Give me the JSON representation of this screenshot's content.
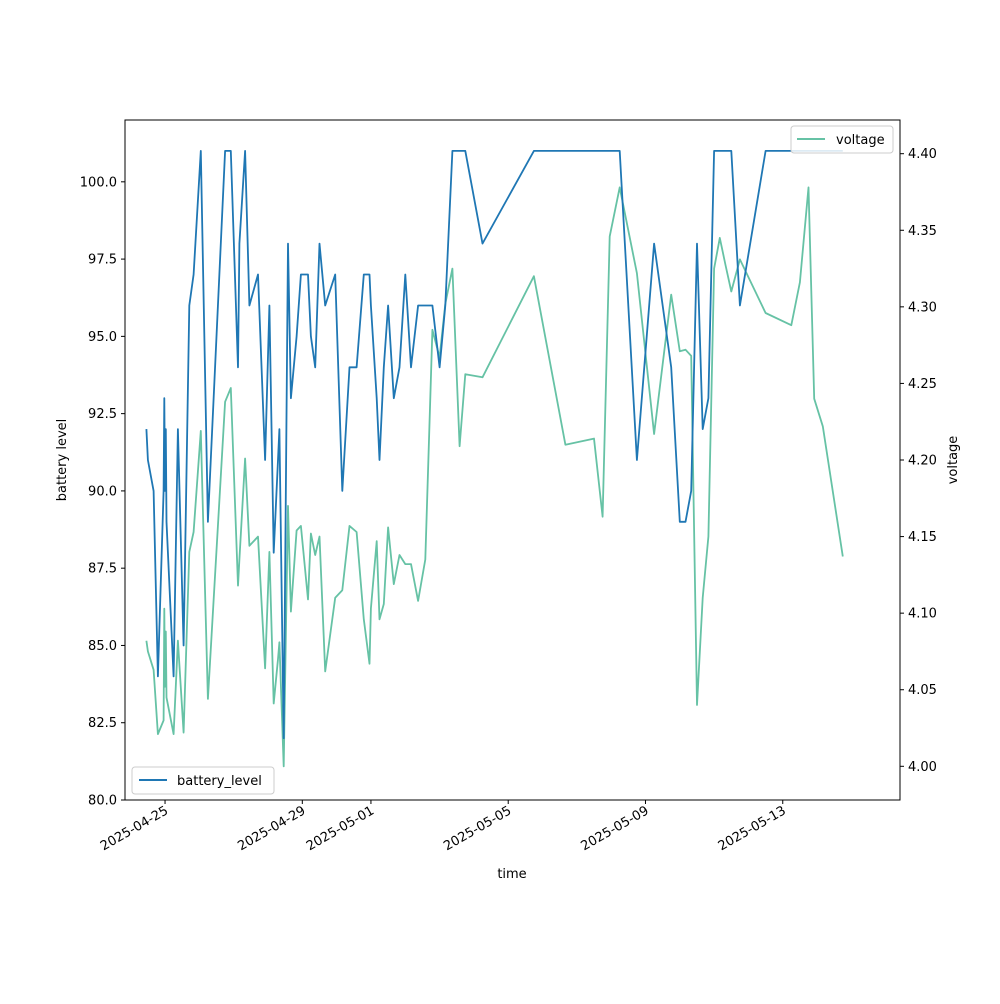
{
  "chart_data": {
    "type": "line",
    "xlabel": "time",
    "x_axis": {
      "type": "date",
      "range": [
        "2025-04-23T20:00",
        "2025-05-16T10:00"
      ],
      "tick_labels": [
        "2025-04-25",
        "2025-04-29",
        "2025-05-01",
        "2025-05-05",
        "2025-05-09",
        "2025-05-13"
      ]
    },
    "y_left": {
      "label": "battery level",
      "range": [
        80.0,
        102.0
      ],
      "tick_labels": [
        "80.0",
        "82.5",
        "85.0",
        "87.5",
        "90.0",
        "92.5",
        "95.0",
        "97.5",
        "100.0"
      ]
    },
    "y_right": {
      "label": "voltage",
      "range": [
        3.978,
        4.422
      ],
      "tick_labels": [
        "4.00",
        "4.05",
        "4.10",
        "4.15",
        "4.20",
        "4.25",
        "4.30",
        "4.35",
        "4.40"
      ]
    },
    "legends": [
      {
        "series": "battery_level",
        "placement": "lower-left"
      },
      {
        "series": "voltage",
        "placement": "upper-right"
      }
    ],
    "grid": false,
    "series": [
      {
        "name": "battery_level",
        "axis": "left",
        "color": "#1f77b4",
        "x": [
          "2025-04-24T11:00",
          "2025-04-24T12:00",
          "2025-04-24T16:00",
          "2025-04-24T19:00",
          "2025-04-24T23:00",
          "2025-04-24T23:30",
          "2025-04-25T00:00",
          "2025-04-25T00:30",
          "2025-04-25T01:00",
          "2025-04-25T06:00",
          "2025-04-25T09:00",
          "2025-04-25T13:00",
          "2025-04-25T17:00",
          "2025-04-25T20:00",
          "2025-04-26T01:00",
          "2025-04-26T06:00",
          "2025-04-26T18:00",
          "2025-04-26T22:00",
          "2025-04-27T03:00",
          "2025-04-27T04:00",
          "2025-04-27T08:00",
          "2025-04-27T11:00",
          "2025-04-27T17:00",
          "2025-04-27T22:00",
          "2025-04-28T01:00",
          "2025-04-28T04:00",
          "2025-04-28T07:00",
          "2025-04-28T08:00",
          "2025-04-28T11:00",
          "2025-04-28T14:00",
          "2025-04-28T16:00",
          "2025-04-28T20:00",
          "2025-04-28T23:00",
          "2025-04-29T04:00",
          "2025-04-29T06:00",
          "2025-04-29T09:00",
          "2025-04-29T12:00",
          "2025-04-29T16:00",
          "2025-04-29T23:00",
          "2025-04-30T04:00",
          "2025-04-30T09:00",
          "2025-04-30T14:00",
          "2025-04-30T19:00",
          "2025-04-30T23:00",
          "2025-05-01T00:00",
          "2025-05-01T04:00",
          "2025-05-01T06:00",
          "2025-05-01T09:00",
          "2025-05-01T12:00",
          "2025-05-01T16:00",
          "2025-05-01T20:00",
          "2025-05-02T00:00",
          "2025-05-02T04:00",
          "2025-05-02T09:00",
          "2025-05-02T14:00",
          "2025-05-02T19:00",
          "2025-05-03T00:00",
          "2025-05-03T04:00",
          "2025-05-03T09:00",
          "2025-05-03T14:00",
          "2025-05-03T18:00",
          "2025-05-04T06:00",
          "2025-05-05T18:00",
          "2025-05-06T16:00",
          "2025-05-07T12:00",
          "2025-05-07T18:00",
          "2025-05-07T23:00",
          "2025-05-08T06:00",
          "2025-05-08T18:00",
          "2025-05-09T06:00",
          "2025-05-09T18:00",
          "2025-05-10T00:00",
          "2025-05-10T04:00",
          "2025-05-10T08:00",
          "2025-05-10T12:00",
          "2025-05-10T16:00",
          "2025-05-10T20:00",
          "2025-05-11T00:00",
          "2025-05-11T04:00",
          "2025-05-11T08:00",
          "2025-05-11T12:00",
          "2025-05-11T18:00",
          "2025-05-12T12:00",
          "2025-05-13T06:00",
          "2025-05-13T12:00",
          "2025-05-13T18:00",
          "2025-05-13T22:00",
          "2025-05-14T04:00",
          "2025-05-14T18:00"
        ],
        "values": [
          92,
          91,
          90,
          84,
          90,
          93,
          90,
          92,
          89,
          84,
          92,
          85,
          96,
          97,
          101,
          89,
          101,
          101,
          94,
          98,
          101,
          96,
          97,
          91,
          96,
          88,
          91,
          92,
          82,
          98,
          93,
          95,
          97,
          97,
          95,
          94,
          98,
          96,
          97,
          90,
          94,
          94,
          97,
          97,
          96,
          93,
          91,
          94,
          96,
          93,
          94,
          97,
          94,
          96,
          96,
          96,
          94,
          96,
          101,
          101,
          101,
          98,
          101,
          101,
          101,
          101,
          101,
          101,
          91,
          98,
          94,
          89,
          89,
          90,
          98,
          92,
          93,
          101,
          101,
          101,
          101,
          96,
          101,
          101,
          101,
          101,
          101,
          101,
          101
        ]
      },
      {
        "name": "voltage",
        "axis": "right",
        "color": "#66c2a5",
        "x": [
          "2025-04-24T11:00",
          "2025-04-24T12:00",
          "2025-04-24T16:00",
          "2025-04-24T19:00",
          "2025-04-24T23:00",
          "2025-04-24T23:30",
          "2025-04-25T00:00",
          "2025-04-25T00:30",
          "2025-04-25T01:00",
          "2025-04-25T06:00",
          "2025-04-25T09:00",
          "2025-04-25T13:00",
          "2025-04-25T17:00",
          "2025-04-25T20:00",
          "2025-04-26T01:00",
          "2025-04-26T06:00",
          "2025-04-26T18:00",
          "2025-04-26T22:00",
          "2025-04-27T03:00",
          "2025-04-27T04:00",
          "2025-04-27T08:00",
          "2025-04-27T11:00",
          "2025-04-27T17:00",
          "2025-04-27T22:00",
          "2025-04-28T01:00",
          "2025-04-28T04:00",
          "2025-04-28T07:00",
          "2025-04-28T08:00",
          "2025-04-28T11:00",
          "2025-04-28T14:00",
          "2025-04-28T16:00",
          "2025-04-28T20:00",
          "2025-04-28T23:00",
          "2025-04-29T04:00",
          "2025-04-29T06:00",
          "2025-04-29T09:00",
          "2025-04-29T12:00",
          "2025-04-29T16:00",
          "2025-04-29T23:00",
          "2025-04-30T04:00",
          "2025-04-30T09:00",
          "2025-04-30T14:00",
          "2025-04-30T19:00",
          "2025-04-30T23:00",
          "2025-05-01T00:00",
          "2025-05-01T04:00",
          "2025-05-01T06:00",
          "2025-05-01T09:00",
          "2025-05-01T12:00",
          "2025-05-01T16:00",
          "2025-05-01T20:00",
          "2025-05-02T00:00",
          "2025-05-02T04:00",
          "2025-05-02T09:00",
          "2025-05-02T14:00",
          "2025-05-02T19:00",
          "2025-05-03T00:00",
          "2025-05-03T04:00",
          "2025-05-03T09:00",
          "2025-05-03T14:00",
          "2025-05-03T18:00",
          "2025-05-04T06:00",
          "2025-05-05T18:00",
          "2025-05-06T16:00",
          "2025-05-07T12:00",
          "2025-05-07T18:00",
          "2025-05-07T23:00",
          "2025-05-08T06:00",
          "2025-05-08T18:00",
          "2025-05-09T06:00",
          "2025-05-09T18:00",
          "2025-05-10T00:00",
          "2025-05-10T04:00",
          "2025-05-10T08:00",
          "2025-05-10T12:00",
          "2025-05-10T16:00",
          "2025-05-10T20:00",
          "2025-05-11T00:00",
          "2025-05-11T04:00",
          "2025-05-11T08:00",
          "2025-05-11T12:00",
          "2025-05-11T18:00",
          "2025-05-12T12:00",
          "2025-05-13T06:00",
          "2025-05-13T12:00",
          "2025-05-13T18:00",
          "2025-05-13T22:00",
          "2025-05-14T04:00",
          "2025-05-14T18:00"
        ],
        "values": [
          4.082,
          4.075,
          4.063,
          4.021,
          4.03,
          4.103,
          4.052,
          4.088,
          4.045,
          4.021,
          4.082,
          4.022,
          4.14,
          4.153,
          4.219,
          4.044,
          4.238,
          4.247,
          4.118,
          4.135,
          4.201,
          4.144,
          4.15,
          4.064,
          4.14,
          4.041,
          4.07,
          4.081,
          4.0,
          4.17,
          4.101,
          4.154,
          4.157,
          4.109,
          4.152,
          4.138,
          4.15,
          4.062,
          4.11,
          4.115,
          4.157,
          4.153,
          4.096,
          4.067,
          4.103,
          4.147,
          4.096,
          4.106,
          4.156,
          4.119,
          4.138,
          4.132,
          4.132,
          4.108,
          4.135,
          4.285,
          4.267,
          4.302,
          4.325,
          4.209,
          4.256,
          4.254,
          4.32,
          4.21,
          4.214,
          4.163,
          4.346,
          4.378,
          4.322,
          4.217,
          4.308,
          4.271,
          4.272,
          4.268,
          4.04,
          4.11,
          4.15,
          4.325,
          4.345,
          4.327,
          4.31,
          4.331,
          4.296,
          4.288,
          4.316,
          4.378,
          4.24,
          4.222,
          4.137
        ]
      }
    ]
  }
}
